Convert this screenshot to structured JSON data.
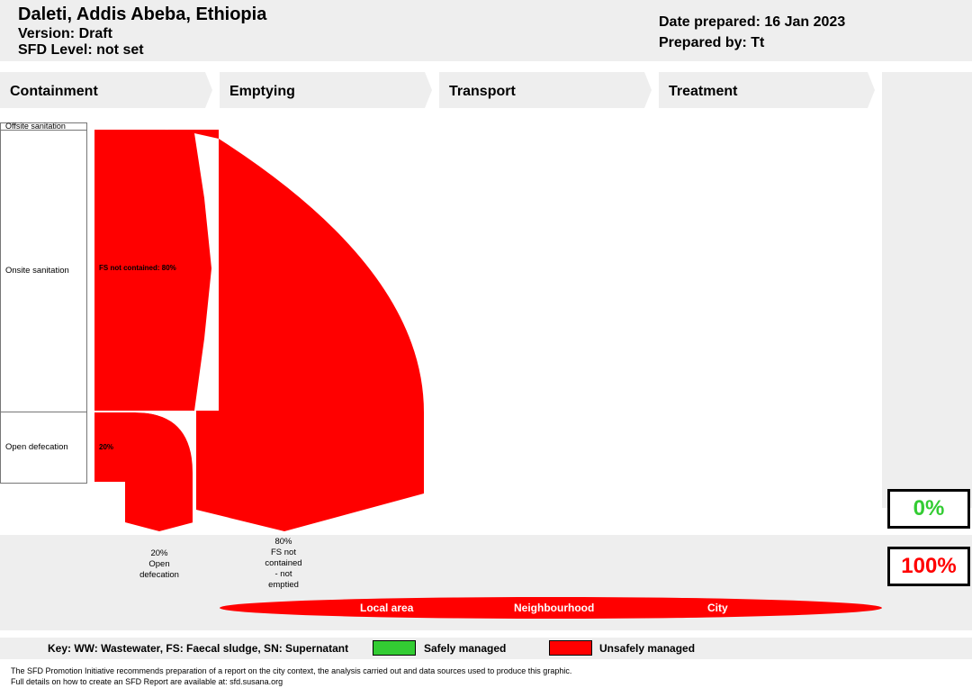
{
  "header": {
    "city": "Daleti, Addis Abeba, Ethiopia",
    "version": "Version: Draft",
    "sfd_level": "SFD Level: not set",
    "date_prepared": "Date prepared: 16 Jan 2023",
    "prepared_by": "Prepared by: Tt"
  },
  "stages": [
    "Containment",
    "Emptying",
    "Transport",
    "Treatment"
  ],
  "sources": {
    "offsite": "Offsite sanitation",
    "onsite": "Onsite sanitation",
    "open_defecation": "Open defecation"
  },
  "flows": {
    "fs_not_contained": "FS not contained: 80%",
    "open_defecation": "20%"
  },
  "outcomes": {
    "open_defecation": [
      "20%",
      "Open",
      "defecation"
    ],
    "fs_not_emptied": [
      "80%",
      "FS not",
      "contained",
      "- not",
      "emptied"
    ]
  },
  "totals": {
    "safe": "0%",
    "unsafe": "100%",
    "safe_color": "#33cc33",
    "unsafe_color": "#ff0000"
  },
  "areas": [
    "Local area",
    "Neighbourhood",
    "City"
  ],
  "key": {
    "label": "Key: WW: Wastewater, FS: Faecal sludge, SN: Supernatant",
    "safe": "Safely managed",
    "unsafe": "Unsafely managed"
  },
  "footer": [
    "The SFD Promotion Initiative recommends preparation of a report on the city context, the analysis carried out and data sources used to produce this graphic.",
    "Full details on how to create an SFD Report are available at: sfd.susana.org"
  ]
}
